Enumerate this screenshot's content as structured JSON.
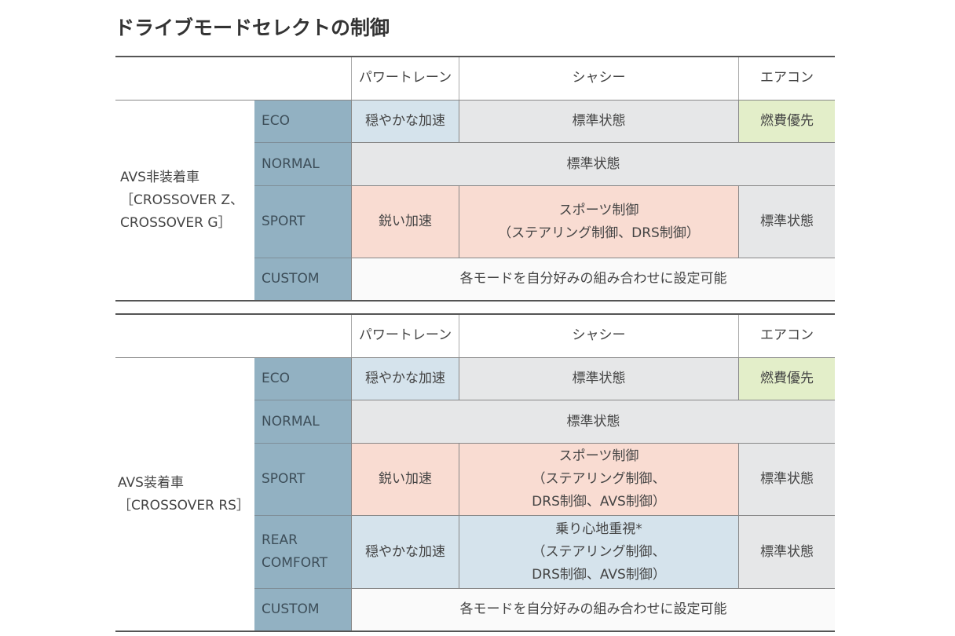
{
  "title": "ドライブモードセレクトの制御",
  "tables": [
    {
      "header": [
        "パワートレーン",
        "シャシー",
        "エアコン"
      ],
      "group_label": "AVS非装着車\n［CROSSOVER Z、\nCROSSOVER G］",
      "rows": [
        {
          "mode": "ECO",
          "cells": [
            "穏やかな加速",
            "標準状態",
            "燃費優先"
          ]
        },
        {
          "mode": "NORMAL",
          "cells": [
            "標準状態"
          ]
        },
        {
          "mode": "SPORT",
          "cells": [
            "鋭い加速",
            "スポーツ制御\n（ステアリング制御、DRS制御）",
            "標準状態"
          ]
        },
        {
          "mode": "CUSTOM",
          "cells": [
            "各モードを自分好みの組み合わせに設定可能"
          ]
        }
      ]
    },
    {
      "header": [
        "パワートレーン",
        "シャシー",
        "エアコン"
      ],
      "group_label": "AVS装着車\n［CROSSOVER RS］",
      "rows": [
        {
          "mode": "ECO",
          "cells": [
            "穏やかな加速",
            "標準状態",
            "燃費優先"
          ]
        },
        {
          "mode": "NORMAL",
          "cells": [
            "標準状態"
          ]
        },
        {
          "mode": "SPORT",
          "cells": [
            "鋭い加速",
            "スポーツ制御\n（ステアリング制御、\nDRS制御、AVS制御）",
            "標準状態"
          ]
        },
        {
          "mode": "REAR\nCOMFORT",
          "cells": [
            "穏やかな加速",
            "乗り心地重視*\n（ステアリング制御、\nDRS制御、AVS制御）",
            "標準状態"
          ]
        },
        {
          "mode": "CUSTOM",
          "cells": [
            "各モードを自分好みの組み合わせに設定可能"
          ]
        }
      ]
    }
  ]
}
